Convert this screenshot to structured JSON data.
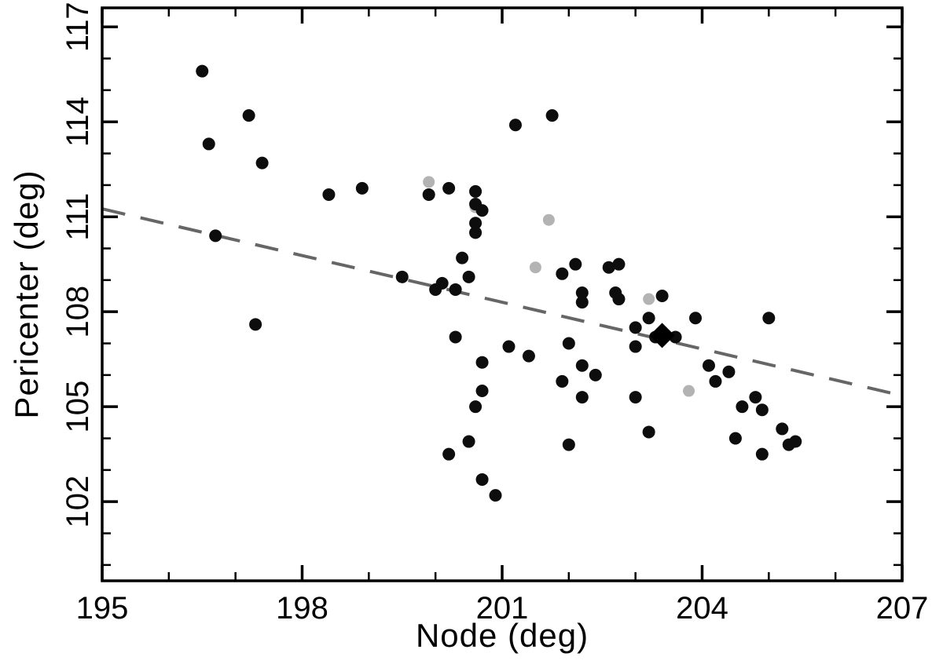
{
  "page": {
    "background": "#ffffff"
  },
  "chart_data": {
    "type": "scatter",
    "title": "",
    "xlabel": "Node (deg)",
    "ylabel": "Pericenter (deg)",
    "xlim": [
      195,
      207
    ],
    "ylim": [
      99.5,
      117.6
    ],
    "x_ticks": [
      195,
      198,
      201,
      204,
      207
    ],
    "y_ticks": [
      102,
      105,
      108,
      111,
      114,
      117
    ],
    "x_minor_step": 1,
    "y_minor_step": 1,
    "grid": false,
    "legend_position": "none",
    "axis_color": "#000000",
    "tick_label_color": "#000000",
    "series": [
      {
        "name": "gray-points",
        "marker": "circle",
        "color": "#b3b3b3",
        "size": 7.5,
        "points": [
          [
            199.9,
            112.1
          ],
          [
            200.6,
            111.3
          ],
          [
            201.7,
            110.9
          ],
          [
            201.5,
            109.4
          ],
          [
            203.2,
            108.4
          ],
          [
            203.8,
            105.5
          ]
        ]
      },
      {
        "name": "black-points",
        "marker": "circle",
        "color": "#0d0d0d",
        "size": 8,
        "points": [
          [
            196.5,
            115.6
          ],
          [
            196.6,
            113.3
          ],
          [
            197.2,
            114.2
          ],
          [
            197.4,
            112.7
          ],
          [
            196.7,
            110.4
          ],
          [
            197.3,
            107.6
          ],
          [
            198.4,
            111.7
          ],
          [
            198.9,
            111.9
          ],
          [
            199.5,
            109.1
          ],
          [
            199.9,
            111.7
          ],
          [
            200.2,
            111.9
          ],
          [
            200.6,
            111.8
          ],
          [
            200.6,
            111.4
          ],
          [
            200.7,
            111.2
          ],
          [
            200.6,
            110.8
          ],
          [
            200.6,
            110.5
          ],
          [
            200.1,
            108.9
          ],
          [
            200.3,
            108.7
          ],
          [
            200.4,
            109.7
          ],
          [
            200.5,
            109.1
          ],
          [
            200.0,
            108.7
          ],
          [
            201.2,
            113.9
          ],
          [
            201.75,
            114.2
          ],
          [
            201.1,
            106.9
          ],
          [
            201.4,
            106.6
          ],
          [
            200.7,
            106.4
          ],
          [
            200.7,
            105.5
          ],
          [
            200.6,
            105.0
          ],
          [
            200.3,
            107.2
          ],
          [
            200.2,
            103.5
          ],
          [
            200.5,
            103.9
          ],
          [
            200.7,
            102.7
          ],
          [
            200.9,
            102.2
          ],
          [
            201.9,
            109.2
          ],
          [
            202.1,
            109.5
          ],
          [
            202.2,
            108.6
          ],
          [
            202.2,
            108.3
          ],
          [
            202.0,
            107.0
          ],
          [
            202.2,
            106.3
          ],
          [
            201.9,
            105.8
          ],
          [
            202.2,
            105.3
          ],
          [
            202.4,
            106.0
          ],
          [
            202.0,
            103.8
          ],
          [
            202.6,
            109.4
          ],
          [
            202.7,
            108.6
          ],
          [
            202.75,
            108.4
          ],
          [
            202.75,
            109.5
          ],
          [
            203.0,
            107.5
          ],
          [
            203.0,
            106.9
          ],
          [
            203.0,
            105.3
          ],
          [
            203.2,
            104.2
          ],
          [
            203.2,
            107.8
          ],
          [
            203.3,
            107.2
          ],
          [
            203.4,
            108.5
          ],
          [
            203.6,
            107.2
          ],
          [
            203.9,
            107.8
          ],
          [
            204.1,
            106.3
          ],
          [
            204.2,
            105.8
          ],
          [
            204.4,
            106.1
          ],
          [
            204.5,
            104.0
          ],
          [
            204.6,
            105.0
          ],
          [
            204.8,
            105.3
          ],
          [
            205.0,
            107.8
          ],
          [
            204.9,
            104.9
          ],
          [
            204.9,
            103.5
          ],
          [
            205.2,
            104.3
          ],
          [
            205.3,
            103.8
          ],
          [
            205.4,
            103.9
          ]
        ]
      },
      {
        "name": "highlight-diamond",
        "marker": "diamond",
        "color": "#000000",
        "size": 16,
        "points": [
          [
            203.4,
            107.25
          ]
        ]
      }
    ],
    "trendline": {
      "style": "dashed",
      "color": "#666666",
      "width": 4,
      "x": [
        195,
        207
      ],
      "y": [
        111.25,
        105.35
      ]
    }
  }
}
